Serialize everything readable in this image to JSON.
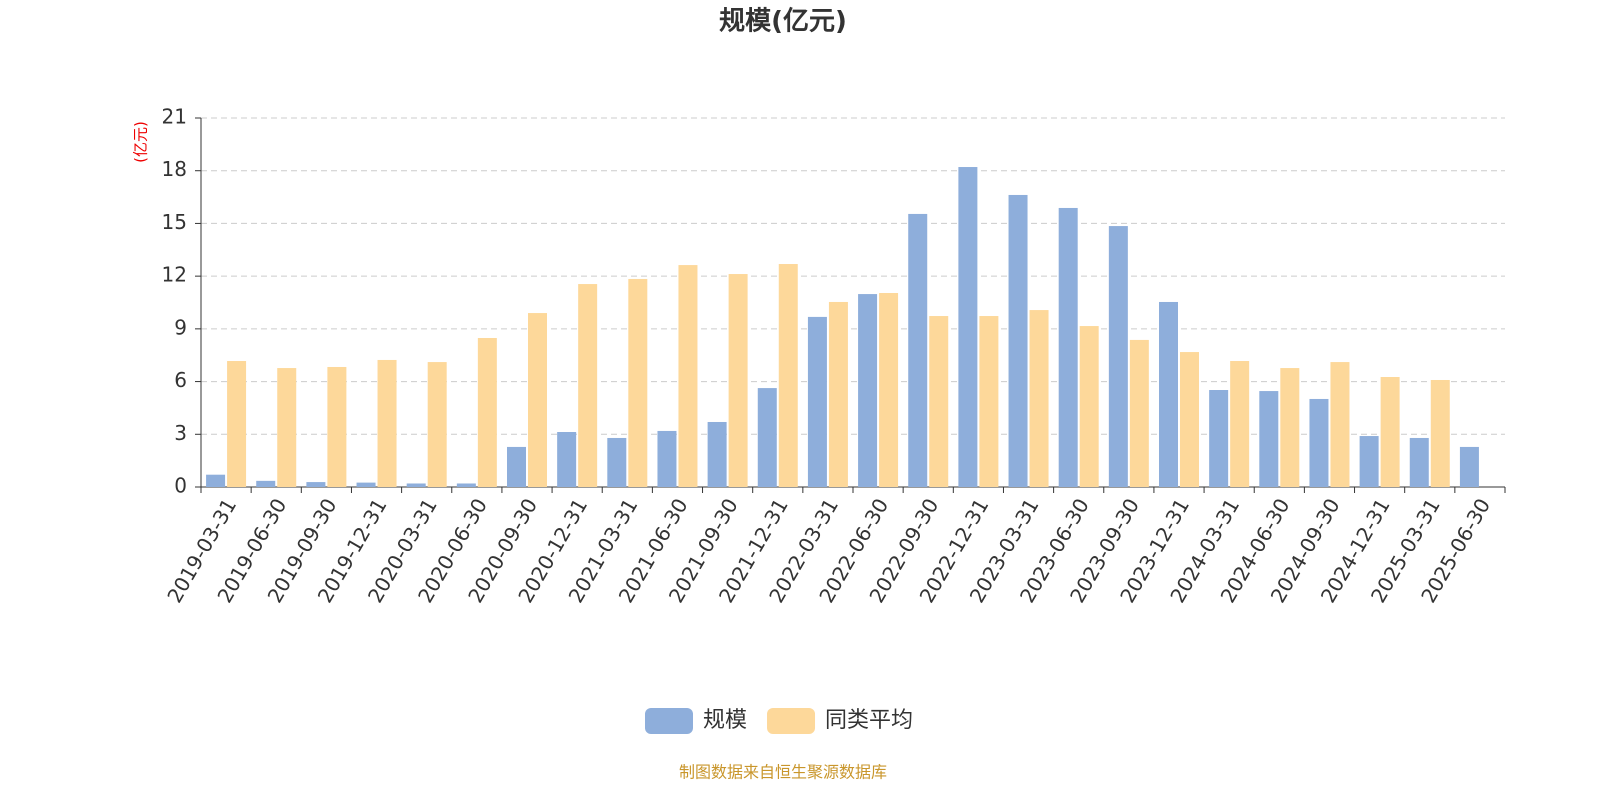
{
  "chart_data": {
    "type": "bar",
    "title": "规模(亿元)",
    "y_axis_label": "(亿元)",
    "categories": [
      "2019-03-31",
      "2019-06-30",
      "2019-09-30",
      "2019-12-31",
      "2020-03-31",
      "2020-06-30",
      "2020-09-30",
      "2020-12-31",
      "2021-03-31",
      "2021-06-30",
      "2021-09-30",
      "2021-12-31",
      "2022-03-31",
      "2022-06-30",
      "2022-09-30",
      "2022-12-31",
      "2023-03-31",
      "2023-06-30",
      "2023-09-30",
      "2023-12-31",
      "2024-03-31",
      "2024-06-30",
      "2024-09-30",
      "2024-12-31",
      "2025-03-31",
      "2025-06-30"
    ],
    "series": [
      {
        "name": "规模",
        "color": "#8eaedb",
        "values": [
          0.7,
          0.35,
          0.28,
          0.25,
          0.2,
          0.2,
          2.28,
          3.13,
          2.79,
          3.19,
          3.7,
          5.63,
          9.68,
          10.98,
          15.54,
          18.21,
          16.62,
          15.88,
          14.85,
          10.53,
          5.52,
          5.46,
          5.01,
          2.9,
          2.79,
          2.28
        ]
      },
      {
        "name": "同类平均",
        "color": "#fdd89a",
        "values": [
          7.17,
          6.77,
          6.83,
          7.23,
          7.11,
          8.48,
          9.9,
          11.55,
          11.84,
          12.63,
          12.12,
          12.69,
          10.53,
          11.04,
          9.73,
          9.73,
          10.07,
          9.16,
          8.37,
          7.68,
          7.17,
          6.77,
          7.11,
          6.26,
          6.09,
          null
        ]
      }
    ],
    "ylim": [
      0,
      21
    ],
    "yticks": [
      0,
      3,
      6,
      9,
      12,
      15,
      18,
      21
    ],
    "grid": true,
    "source": "制图数据来自恒生聚源数据库"
  }
}
